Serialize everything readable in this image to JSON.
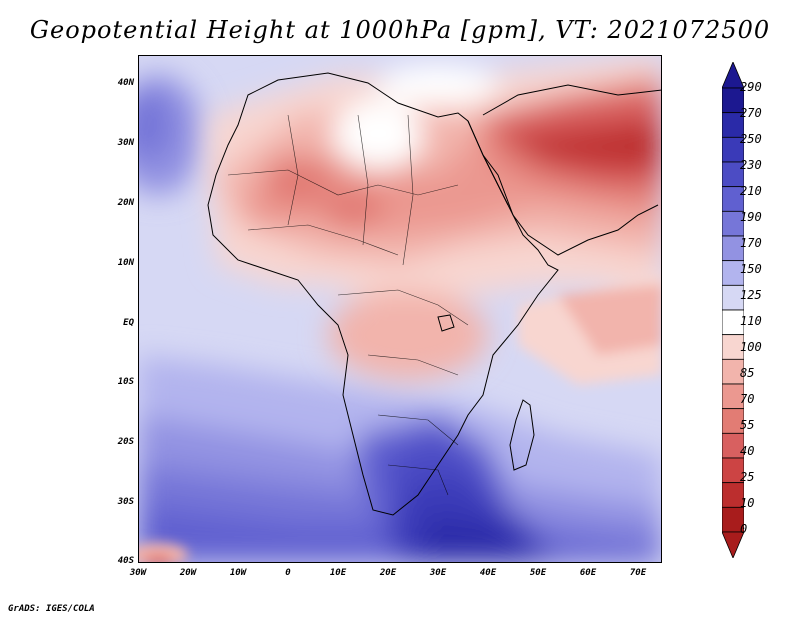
{
  "title": "Geopotential Height at 1000hPa [gpm], VT: 2021072500",
  "credit": "GrADS: IGES/COLA",
  "lat_labels": [
    "40N",
    "30N",
    "20N",
    "10N",
    "EQ",
    "10S",
    "20S",
    "30S",
    "40S"
  ],
  "lon_labels": [
    "30W",
    "20W",
    "10W",
    "0",
    "10E",
    "20E",
    "30E",
    "40E",
    "50E",
    "60E",
    "70E"
  ],
  "colorbar": {
    "labels": [
      "290",
      "270",
      "250",
      "230",
      "210",
      "190",
      "170",
      "150",
      "125",
      "110",
      "100",
      "85",
      "70",
      "55",
      "40",
      "25",
      "10",
      "0"
    ],
    "colors": [
      "#1c1890",
      "#2a2aa8",
      "#3a3ab8",
      "#4c4cc4",
      "#6060d0",
      "#7676d8",
      "#9292e2",
      "#b2b4ee",
      "#d6d8f4",
      "#ffffff",
      "#f8d6d0",
      "#f2b4ac",
      "#eb9890",
      "#e27c74",
      "#d86060",
      "#cc4444",
      "#bc2e2e",
      "#a81c1c"
    ]
  },
  "region": {
    "lon_range": [
      -30,
      75
    ],
    "lat_range": [
      -40,
      45
    ]
  }
}
